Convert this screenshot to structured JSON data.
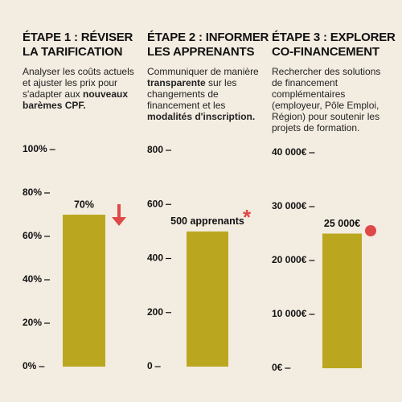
{
  "chart_data": [
    {
      "type": "bar",
      "title": [
        "ÉTAPE 1 : RÉVISER",
        "LA TARIFICATION"
      ],
      "description": [
        {
          "text": "Analyser les coûts actuels et ajuster les prix pour s'adapter aux ",
          "bold": false
        },
        {
          "text": "nouveaux barèmes CPF.",
          "bold": true
        }
      ],
      "values": [
        70
      ],
      "value_labels": [
        "70%"
      ],
      "color": "#bba71f",
      "ylim": [
        0,
        100
      ],
      "yticks": [
        {
          "value": 0,
          "label": "0%"
        },
        {
          "value": 20,
          "label": "20%"
        },
        {
          "value": 40,
          "label": "40%"
        },
        {
          "value": 60,
          "label": "60%"
        },
        {
          "value": 80,
          "label": "80%"
        },
        {
          "value": 100,
          "label": "100%"
        }
      ]
    },
    {
      "type": "bar",
      "title": [
        "ÉTAPE 2 : INFORMER",
        "LES APPRENANTS"
      ],
      "description": [
        {
          "text": "Communiquer de manière ",
          "bold": false
        },
        {
          "text": "transparente",
          "bold": true
        },
        {
          "text": " sur les changements de financement et les ",
          "bold": false
        },
        {
          "text": "modalités d'inscription.",
          "bold": true
        }
      ],
      "values": [
        500
      ],
      "value_labels": [
        "500 apprenants"
      ],
      "color": "#bba71f",
      "ylim": [
        0,
        800
      ],
      "yticks": [
        0,
        200,
        400,
        600,
        800
      ]
    },
    {
      "type": "bar",
      "title": [
        "ÉTAPE 3 : EXPLORER",
        "CO-FINANCEMENT"
      ],
      "description": [
        {
          "text": "Rechercher des solutions de financement complémentaires (employeur, Pôle Emploi, Région) pour soutenir les projets de formation.",
          "bold": false
        }
      ],
      "values": [
        25000
      ],
      "value_labels": [
        "25 000€"
      ],
      "color": "#bba71f",
      "ylim": [
        0,
        40000
      ],
      "yticks": [
        {
          "value": 0,
          "label": "0€"
        },
        {
          "value": 10000,
          "label": "10 000€"
        },
        {
          "value": 20000,
          "label": "20 000€"
        },
        {
          "value": 30000,
          "label": "30 000€"
        },
        {
          "value": 40000,
          "label": "40 000€"
        }
      ]
    }
  ]
}
